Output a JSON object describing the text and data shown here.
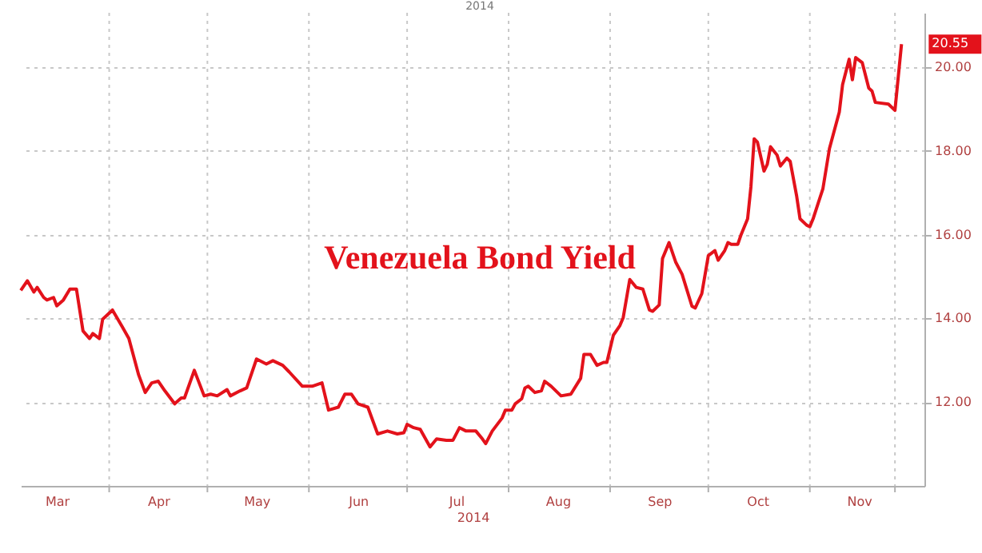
{
  "chart_data": {
    "type": "line",
    "xlabel": "2014",
    "annotations": [
      "Venezuela Bond Yield",
      "2014",
      {
        "text": "20.55",
        "x": "2014-11-29",
        "y": 20.55
      }
    ],
    "x": [
      "2014-03-05",
      "2014-03-07",
      "2014-03-09",
      "2014-03-10",
      "2014-03-12",
      "2014-03-13",
      "2014-03-15",
      "2014-03-16",
      "2014-03-18",
      "2014-03-20",
      "2014-03-22",
      "2014-03-24",
      "2014-03-26",
      "2014-03-27",
      "2014-03-29",
      "2014-03-30",
      "2014-04-02",
      "2014-04-05",
      "2014-04-07",
      "2014-04-10",
      "2014-04-12",
      "2014-04-14",
      "2014-04-16",
      "2014-04-18",
      "2014-04-21",
      "2014-04-23",
      "2014-04-24",
      "2014-04-27",
      "2014-04-30",
      "2014-05-02",
      "2014-05-04",
      "2014-05-07",
      "2014-05-08",
      "2014-05-11",
      "2014-05-13",
      "2014-05-16",
      "2014-05-19",
      "2014-05-21",
      "2014-05-24",
      "2014-05-26",
      "2014-05-30",
      "2014-06-02",
      "2014-06-05",
      "2014-06-07",
      "2014-06-10",
      "2014-06-12",
      "2014-06-14",
      "2014-06-16",
      "2014-06-19",
      "2014-06-22",
      "2014-06-25",
      "2014-06-28",
      "2014-06-30",
      "2014-07-01",
      "2014-07-03",
      "2014-07-05",
      "2014-07-08",
      "2014-07-10",
      "2014-07-13",
      "2014-07-15",
      "2014-07-17",
      "2014-07-19",
      "2014-07-22",
      "2014-07-24",
      "2014-07-25",
      "2014-07-27",
      "2014-07-30",
      "2014-07-31",
      "2014-08-02",
      "2014-08-03",
      "2014-08-05",
      "2014-08-06",
      "2014-08-07",
      "2014-08-09",
      "2014-08-11",
      "2014-08-12",
      "2014-08-14",
      "2014-08-17",
      "2014-08-20",
      "2014-08-23",
      "2014-08-24",
      "2014-08-26",
      "2014-08-28",
      "2014-08-30",
      "2014-08-31",
      "2014-09-02",
      "2014-09-04",
      "2014-09-05",
      "2014-09-07",
      "2014-09-09",
      "2014-09-11",
      "2014-09-13",
      "2014-09-14",
      "2014-09-16",
      "2014-09-17",
      "2014-09-19",
      "2014-09-21",
      "2014-09-23",
      "2014-09-26",
      "2014-09-27",
      "2014-09-29",
      "2014-10-01",
      "2014-10-03",
      "2014-10-04",
      "2014-10-06",
      "2014-10-07",
      "2014-10-08",
      "2014-10-10",
      "2014-10-11",
      "2014-10-13",
      "2014-10-14",
      "2014-10-15",
      "2014-10-16",
      "2014-10-18",
      "2014-10-19",
      "2014-10-20",
      "2014-10-22",
      "2014-10-23",
      "2014-10-25",
      "2014-10-26",
      "2014-10-28",
      "2014-10-29",
      "2014-10-31",
      "2014-11-01",
      "2014-11-02",
      "2014-11-05",
      "2014-11-07",
      "2014-11-10",
      "2014-11-11",
      "2014-11-13",
      "2014-11-14",
      "2014-11-15",
      "2014-11-17",
      "2014-11-19",
      "2014-11-20",
      "2014-11-21",
      "2014-11-25",
      "2014-11-27",
      "2014-11-29"
    ],
    "series": [
      {
        "color": "#e3121b",
        "values": [
          14.67,
          14.9,
          14.63,
          14.74,
          14.5,
          14.44,
          14.5,
          14.3,
          14.44,
          14.7,
          14.7,
          13.7,
          13.52,
          13.64,
          13.52,
          13.98,
          14.2,
          13.8,
          13.52,
          12.65,
          12.23,
          12.46,
          12.5,
          12.27,
          11.96,
          12.1,
          12.1,
          12.76,
          12.15,
          12.19,
          12.15,
          12.3,
          12.15,
          12.27,
          12.34,
          13.03,
          12.91,
          12.99,
          12.88,
          12.72,
          12.38,
          12.38,
          12.46,
          11.81,
          11.88,
          12.19,
          12.19,
          11.96,
          11.88,
          11.24,
          11.31,
          11.24,
          11.27,
          11.47,
          11.39,
          11.35,
          10.93,
          11.12,
          11.09,
          11.09,
          11.39,
          11.31,
          11.31,
          11.12,
          11.01,
          11.31,
          11.62,
          11.81,
          11.81,
          11.96,
          12.08,
          12.34,
          12.38,
          12.23,
          12.27,
          12.5,
          12.38,
          12.15,
          12.19,
          12.57,
          13.14,
          13.14,
          12.88,
          12.95,
          12.95,
          13.6,
          13.83,
          14.02,
          14.93,
          14.74,
          14.7,
          14.2,
          14.17,
          14.32,
          15.43,
          15.81,
          15.35,
          15.05,
          14.29,
          14.25,
          14.59,
          15.5,
          15.62,
          15.39,
          15.62,
          15.81,
          15.77,
          15.77,
          16.0,
          16.38,
          17.14,
          18.29,
          18.21,
          17.52,
          17.68,
          18.1,
          17.9,
          17.64,
          17.83,
          17.75,
          16.91,
          16.38,
          16.23,
          16.19,
          16.38,
          17.1,
          18.06,
          18.93,
          19.58,
          20.19,
          19.7,
          20.23,
          20.11,
          19.5,
          19.43,
          19.16,
          19.12,
          18.97,
          20.55
        ]
      }
    ],
    "xlim": [
      "2014-03-05",
      "2014-12-06"
    ],
    "xticks": [
      {
        "value": "2014-03-16",
        "label": "Mar"
      },
      {
        "value": "2014-04-01",
        "label": null
      },
      {
        "value": "2014-04-16",
        "label": "Apr"
      },
      {
        "value": "2014-05-01",
        "label": null
      },
      {
        "value": "2014-05-16",
        "label": "May"
      },
      {
        "value": "2014-06-01",
        "label": null
      },
      {
        "value": "2014-06-16",
        "label": "Jun"
      },
      {
        "value": "2014-07-01",
        "label": null
      },
      {
        "value": "2014-07-16",
        "label": "Jul"
      },
      {
        "value": "2014-08-01",
        "label": null
      },
      {
        "value": "2014-08-16",
        "label": "Aug"
      },
      {
        "value": "2014-09-01",
        "label": null
      },
      {
        "value": "2014-09-16",
        "label": "Sep"
      },
      {
        "value": "2014-10-01",
        "label": null
      },
      {
        "value": "2014-10-16",
        "label": "Oct"
      },
      {
        "value": "2014-11-01",
        "label": null
      },
      {
        "value": "2014-11-16",
        "label": "Nov"
      },
      {
        "value": "2014-11-27",
        "label": null
      }
    ],
    "ylim": [
      10,
      21.3
    ],
    "yticks": [
      {
        "value": 12,
        "label": "12.00"
      },
      {
        "value": 14,
        "label": "14.00"
      },
      {
        "value": 16,
        "label": "16.00"
      },
      {
        "value": 18,
        "label": "18.00"
      },
      {
        "value": 20,
        "label": "20.00"
      }
    ],
    "grid": true,
    "marker": "none",
    "line_style": "solid"
  }
}
